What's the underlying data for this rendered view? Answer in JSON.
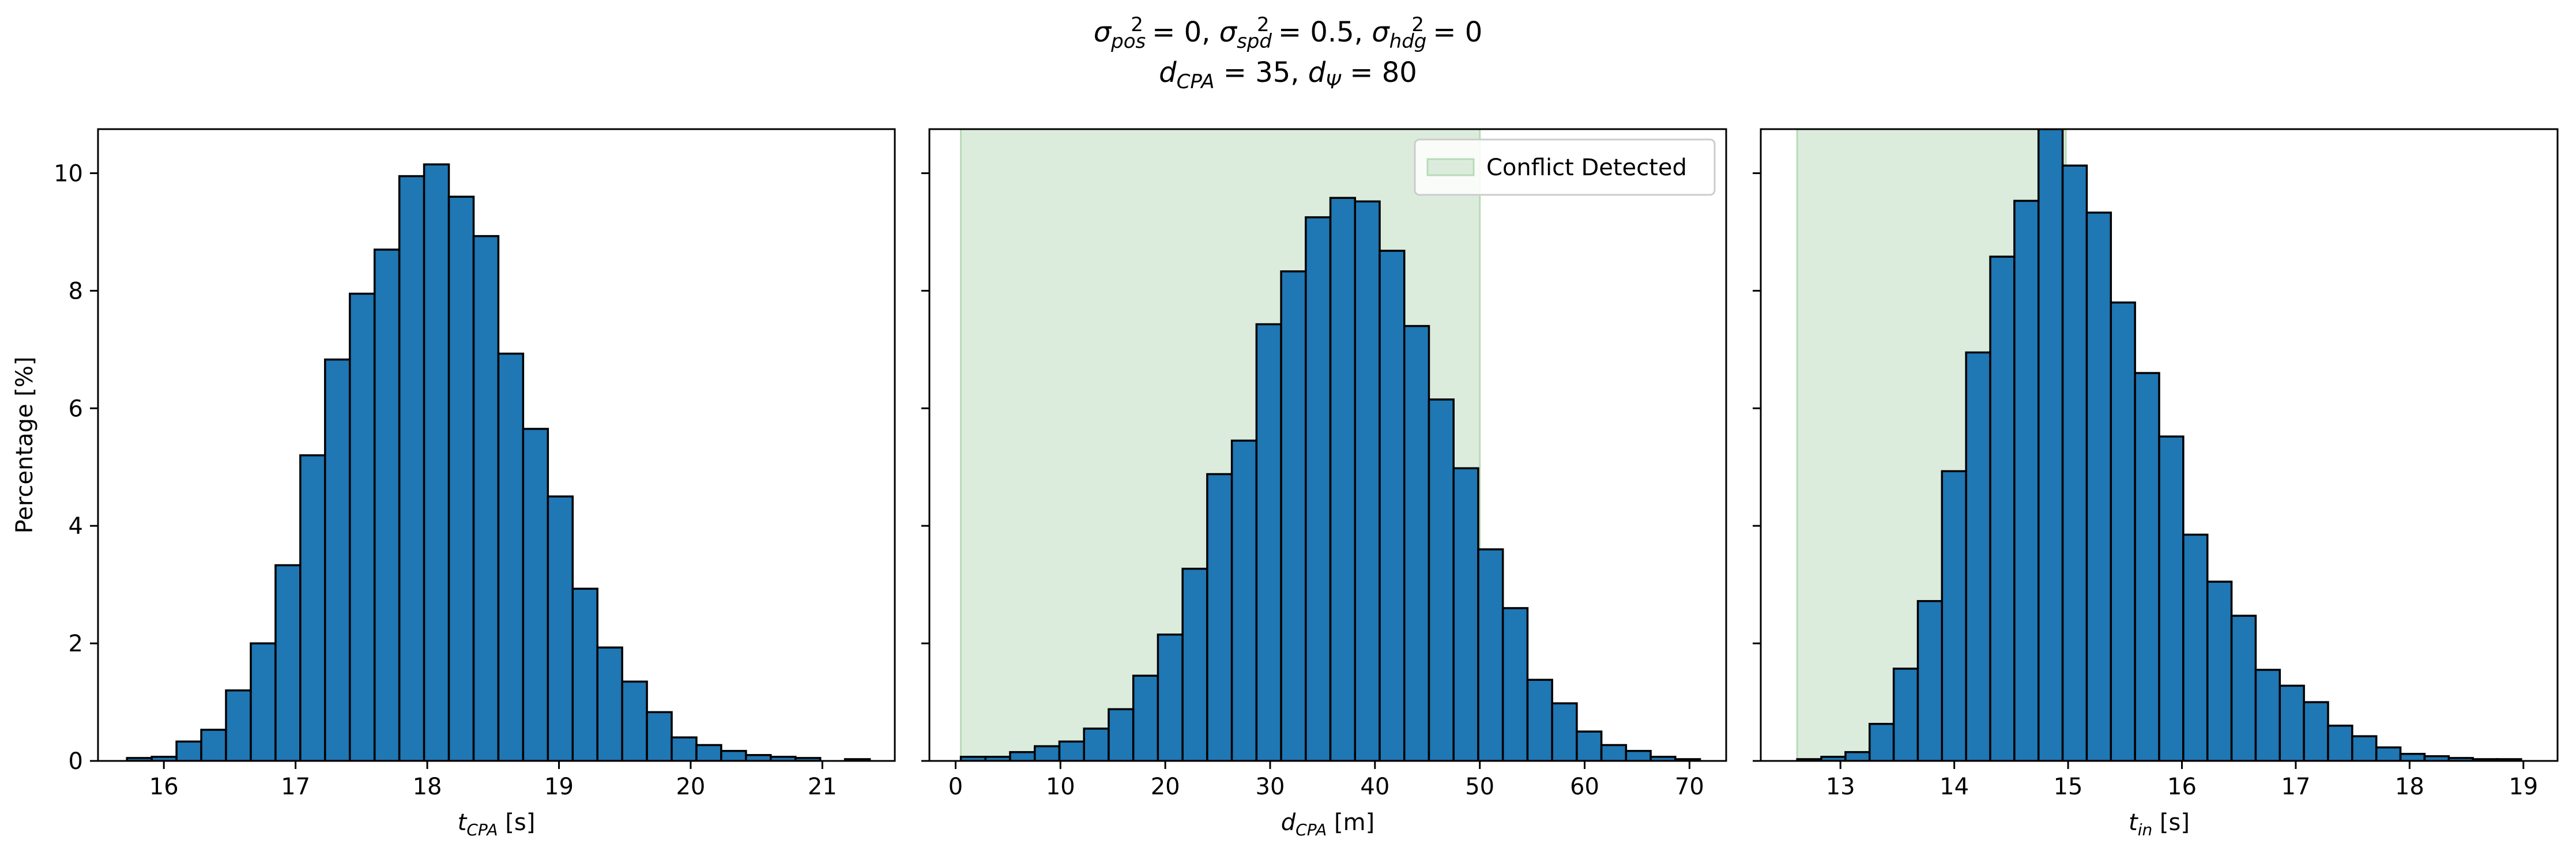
{
  "figure": {
    "title_line1_parts": [
      {
        "t": "σ",
        "style": "italic"
      },
      {
        "t": "pos",
        "style": "sub"
      },
      {
        "t": "2",
        "style": "sup"
      },
      {
        "t": " = 0, ",
        "style": "normal"
      },
      {
        "t": "σ",
        "style": "italic"
      },
      {
        "t": "spd",
        "style": "sub"
      },
      {
        "t": "2",
        "style": "sup"
      },
      {
        "t": " = 0.5, ",
        "style": "normal"
      },
      {
        "t": "σ",
        "style": "italic"
      },
      {
        "t": "hdg",
        "style": "sub"
      },
      {
        "t": "2",
        "style": "sup"
      },
      {
        "t": " = 0",
        "style": "normal"
      }
    ],
    "title_line2_parts": [
      {
        "t": "d",
        "style": "italic"
      },
      {
        "t": "CPA",
        "style": "sub"
      },
      {
        "t": " = 35, ",
        "style": "normal"
      },
      {
        "t": "d",
        "style": "italic"
      },
      {
        "t": "Ψ",
        "style": "sub"
      },
      {
        "t": " = 80",
        "style": "normal"
      }
    ]
  },
  "colors": {
    "bar_fill": "#1f77b4",
    "bar_edge": "#000000",
    "conflict_fill": "#dcecdc",
    "conflict_edge": "#b8dab8"
  },
  "chart_data": [
    {
      "type": "bar",
      "ylabel": "Percentage [%]",
      "xlabel_parts": [
        {
          "t": "t",
          "style": "italic"
        },
        {
          "t": "CPA",
          "style": "sub"
        },
        {
          "t": " [s]",
          "style": "normal"
        }
      ],
      "xlim": [
        15.5,
        21.55
      ],
      "ylim": [
        0,
        10.75
      ],
      "xticks": [
        16,
        17,
        18,
        19,
        20,
        21
      ],
      "yticks": [
        0,
        2,
        4,
        6,
        8,
        10
      ],
      "bin_start": 15.72,
      "bin_width": 0.188,
      "values": [
        0.05,
        0.07,
        0.33,
        0.53,
        1.2,
        2.0,
        3.33,
        5.2,
        6.83,
        7.95,
        8.7,
        9.95,
        10.15,
        9.6,
        8.93,
        6.93,
        5.65,
        4.5,
        2.93,
        1.93,
        1.35,
        0.83,
        0.4,
        0.27,
        0.17,
        0.1,
        0.07,
        0.05,
        0.0,
        0.03
      ],
      "conflict_region": null,
      "legend": null
    },
    {
      "type": "bar",
      "xlabel_parts": [
        {
          "t": "d",
          "style": "italic"
        },
        {
          "t": "CPA",
          "style": "sub"
        },
        {
          "t": " [m]",
          "style": "normal"
        }
      ],
      "xlim": [
        -2.5,
        73.5
      ],
      "ylim": [
        0,
        10.75
      ],
      "xticks": [
        0,
        10,
        20,
        30,
        40,
        50,
        60,
        70
      ],
      "yticks": [
        0,
        2,
        4,
        6,
        8,
        10
      ],
      "bin_start": 0.5,
      "bin_width": 2.35,
      "values": [
        0.07,
        0.07,
        0.15,
        0.25,
        0.33,
        0.55,
        0.88,
        1.45,
        2.15,
        3.27,
        4.88,
        5.45,
        7.43,
        8.33,
        9.25,
        9.58,
        9.52,
        8.68,
        7.4,
        6.15,
        4.98,
        3.6,
        2.6,
        1.38,
        0.98,
        0.5,
        0.27,
        0.17,
        0.07,
        0.03
      ],
      "conflict_region": [
        0.5,
        50.0
      ],
      "legend": {
        "label": "Conflict Detected",
        "placement": "top-right"
      }
    },
    {
      "type": "bar",
      "xlabel_parts": [
        {
          "t": "t",
          "style": "italic"
        },
        {
          "t": "in",
          "style": "sub"
        },
        {
          "t": " [s]",
          "style": "normal"
        }
      ],
      "xlim": [
        12.3,
        19.3
      ],
      "ylim": [
        0,
        10.75
      ],
      "xticks": [
        13,
        14,
        15,
        16,
        17,
        18,
        19
      ],
      "yticks": [
        0,
        2,
        4,
        6,
        8,
        10
      ],
      "bin_start": 12.62,
      "bin_width": 0.212,
      "values": [
        0.03,
        0.07,
        0.15,
        0.63,
        1.57,
        2.72,
        4.93,
        6.95,
        8.58,
        9.53,
        10.75,
        10.13,
        9.33,
        7.8,
        6.6,
        5.52,
        3.85,
        3.05,
        2.47,
        1.55,
        1.28,
        1.0,
        0.6,
        0.42,
        0.23,
        0.12,
        0.08,
        0.05,
        0.03,
        0.03
      ],
      "conflict_region": [
        12.62,
        14.98
      ],
      "legend": null
    }
  ]
}
